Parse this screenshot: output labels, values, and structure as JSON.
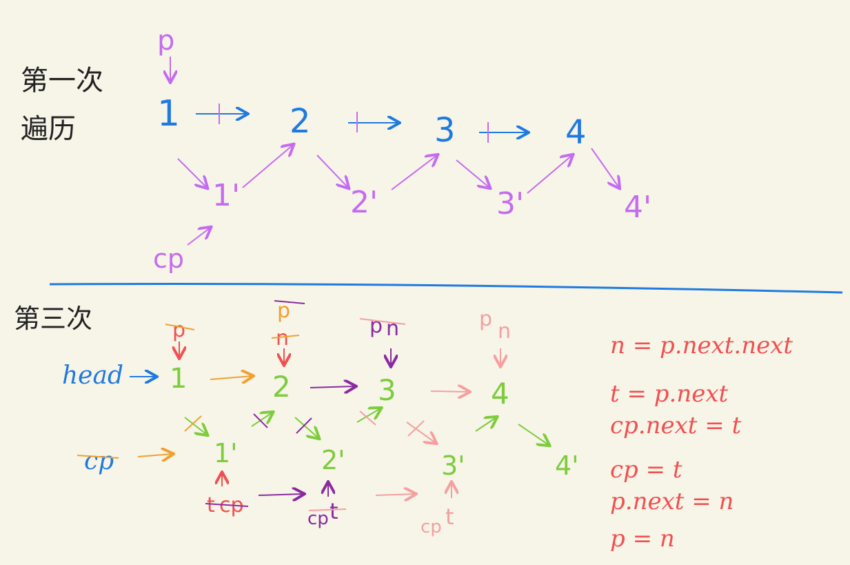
{
  "colors": {
    "background": "#f7f4e8",
    "blue": "#1f7ae0",
    "violet": "#c46cf0",
    "green": "#7ccc3c",
    "orange": "#f0a030",
    "red": "#f05050",
    "purple": "#8a2aa0",
    "pink": "#f4a0a0",
    "black": "#222222"
  },
  "section1": {
    "title_line1": "第一次",
    "title_line2": "遍历",
    "pointer_p": "p",
    "pointer_cp": "cp",
    "nodes": [
      "1",
      "2",
      "3",
      "4"
    ],
    "copies": [
      "1'",
      "2'",
      "3'",
      "4'"
    ]
  },
  "section2": {
    "title": "第三次",
    "head_label": "head",
    "cp_label": "cp",
    "nodes": [
      "1",
      "2",
      "3",
      "4"
    ],
    "copies": [
      "1'",
      "2'",
      "3'",
      "4'"
    ],
    "p_labels": [
      "p",
      "p",
      "p",
      "p"
    ],
    "n_labels": [
      "n",
      "n",
      "n"
    ],
    "t_labels": [
      "t",
      "t",
      "t"
    ],
    "cp_labels": [
      "cp",
      "cp",
      "cp",
      "cp"
    ]
  },
  "code": {
    "lines": [
      "n = p.next.next",
      "t = p.next",
      "cp.next = t",
      "cp = t",
      "p.next = n",
      "p = n"
    ]
  }
}
